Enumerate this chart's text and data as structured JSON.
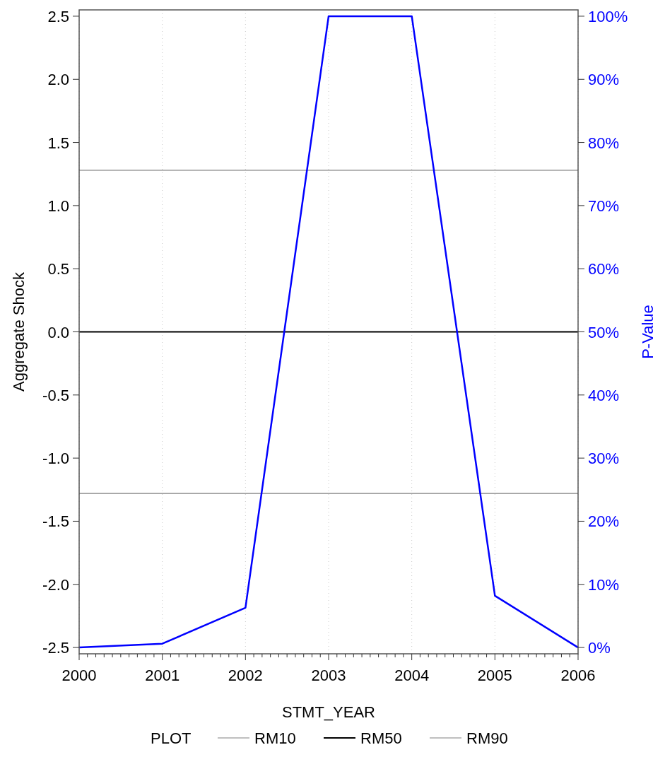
{
  "chart_data": {
    "type": "line",
    "xlabel": "STMT_YEAR",
    "ylabel": "Aggregate Shock",
    "y2label": "P-Value",
    "legend_title": "PLOT",
    "legend": "bottom",
    "grid": "x",
    "line_style": "solid",
    "xlim": [
      2000,
      2006
    ],
    "xticks": [
      2000,
      {
        "value": 2000.1,
        "label": null
      },
      {
        "value": 2000.2,
        "label": null
      },
      {
        "value": 2000.3,
        "label": null
      },
      {
        "value": 2000.4,
        "label": null
      },
      {
        "value": 2000.5,
        "label": null
      },
      {
        "value": 2000.6,
        "label": null
      },
      {
        "value": 2000.7,
        "label": null
      },
      {
        "value": 2000.8,
        "label": null
      },
      {
        "value": 2000.9,
        "label": null
      },
      2001,
      {
        "value": 2001.1,
        "label": null
      },
      {
        "value": 2001.2,
        "label": null
      },
      {
        "value": 2001.3,
        "label": null
      },
      {
        "value": 2001.4,
        "label": null
      },
      {
        "value": 2001.5,
        "label": null
      },
      {
        "value": 2001.6,
        "label": null
      },
      {
        "value": 2001.7,
        "label": null
      },
      {
        "value": 2001.8,
        "label": null
      },
      {
        "value": 2001.9,
        "label": null
      },
      2002,
      {
        "value": 2002.1,
        "label": null
      },
      {
        "value": 2002.2,
        "label": null
      },
      {
        "value": 2002.3,
        "label": null
      },
      {
        "value": 2002.4,
        "label": null
      },
      {
        "value": 2002.5,
        "label": null
      },
      {
        "value": 2002.6,
        "label": null
      },
      {
        "value": 2002.7,
        "label": null
      },
      {
        "value": 2002.8,
        "label": null
      },
      {
        "value": 2002.9,
        "label": null
      },
      2003,
      {
        "value": 2003.1,
        "label": null
      },
      {
        "value": 2003.2,
        "label": null
      },
      {
        "value": 2003.3,
        "label": null
      },
      {
        "value": 2003.4,
        "label": null
      },
      {
        "value": 2003.5,
        "label": null
      },
      {
        "value": 2003.6,
        "label": null
      },
      {
        "value": 2003.7,
        "label": null
      },
      {
        "value": 2003.8,
        "label": null
      },
      {
        "value": 2003.9,
        "label": null
      },
      2004,
      {
        "value": 2004.1,
        "label": null
      },
      {
        "value": 2004.2,
        "label": null
      },
      {
        "value": 2004.3,
        "label": null
      },
      {
        "value": 2004.4,
        "label": null
      },
      {
        "value": 2004.5,
        "label": null
      },
      {
        "value": 2004.6,
        "label": null
      },
      {
        "value": 2004.7,
        "label": null
      },
      {
        "value": 2004.8,
        "label": null
      },
      {
        "value": 2004.9,
        "label": null
      },
      2005,
      {
        "value": 2005.1,
        "label": null
      },
      {
        "value": 2005.2,
        "label": null
      },
      {
        "value": 2005.3,
        "label": null
      },
      {
        "value": 2005.4,
        "label": null
      },
      {
        "value": 2005.5,
        "label": null
      },
      {
        "value": 2005.6,
        "label": null
      },
      {
        "value": 2005.7,
        "label": null
      },
      {
        "value": 2005.8,
        "label": null
      },
      {
        "value": 2005.9,
        "label": null
      },
      2006
    ],
    "ylim": [
      -2.55,
      2.55
    ],
    "yticks": [
      -2.5,
      {
        "value": -2,
        "label": "-2.0"
      },
      -1.5,
      {
        "value": -1,
        "label": "-1.0"
      },
      -0.5,
      {
        "value": 0,
        "label": "0.0"
      },
      0.5,
      {
        "value": 1,
        "label": "1.0"
      },
      1.5,
      {
        "value": 2,
        "label": "2.0"
      },
      2.5
    ],
    "y2lim": [
      -1,
      101
    ],
    "y2ticks": [
      {
        "value": 0,
        "label": "0%"
      },
      {
        "value": 10,
        "label": "10%"
      },
      {
        "value": 20,
        "label": "20%"
      },
      {
        "value": 30,
        "label": "30%"
      },
      {
        "value": 40,
        "label": "40%"
      },
      {
        "value": 50,
        "label": "50%"
      },
      {
        "value": 60,
        "label": "60%"
      },
      {
        "value": 70,
        "label": "70%"
      },
      {
        "value": 80,
        "label": "80%"
      },
      {
        "value": 90,
        "label": "90%"
      },
      {
        "value": 100,
        "label": "100%"
      }
    ],
    "series": [
      {
        "name": "RM10",
        "color": "#808080",
        "x": [
          2000,
          2006
        ],
        "values": [
          -1.28,
          -1.28
        ]
      },
      {
        "name": "RM50",
        "color": "#000000",
        "x": [
          2000,
          2006
        ],
        "values": [
          0,
          0
        ]
      },
      {
        "name": "RM90",
        "color": "#808080",
        "x": [
          2000,
          2006
        ],
        "values": [
          1.28,
          1.28
        ]
      },
      {
        "color": "#0000ff",
        "axis": "y2",
        "x": [
          2000,
          2001,
          2002,
          2003,
          2004,
          2005,
          2006
        ],
        "values": [
          0,
          0.6,
          6.3,
          100,
          100,
          8.2,
          0
        ]
      }
    ]
  }
}
